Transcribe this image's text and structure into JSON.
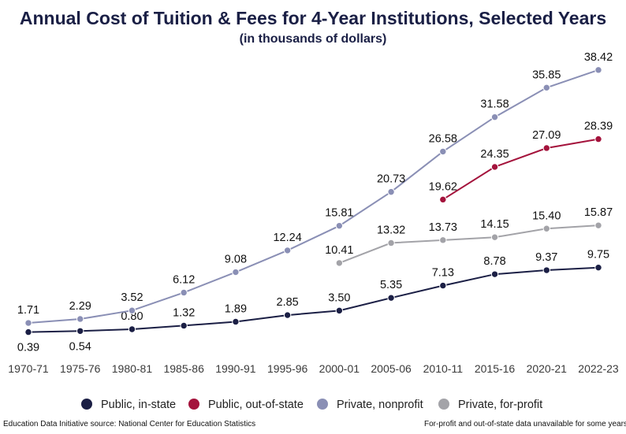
{
  "chart_data": {
    "type": "line",
    "title": "Annual Cost of Tuition & Fees for 4-Year Institutions, Selected Years",
    "subtitle": "(in thousands of dollars)",
    "xlabel": "",
    "ylabel": "",
    "ylim": [
      0,
      40
    ],
    "grid": false,
    "legend_position": "bottom",
    "categories": [
      "1970-71",
      "1975-76",
      "1980-81",
      "1985-86",
      "1990-91",
      "1995-96",
      "2000-01",
      "2005-06",
      "2010-11",
      "2015-16",
      "2020-21",
      "2022-23"
    ],
    "series": [
      {
        "name": "Public, in-state",
        "color": "#1b1f45",
        "values": [
          0.39,
          0.54,
          0.8,
          1.32,
          1.89,
          2.85,
          3.5,
          5.35,
          7.13,
          8.78,
          9.37,
          9.75
        ],
        "labels": [
          "0.39",
          "0.54",
          "0.80",
          "1.32",
          "1.89",
          "2.85",
          "3.50",
          "5.35",
          "7.13",
          "8.78",
          "9.37",
          "9.75"
        ]
      },
      {
        "name": "Public, out-of-state",
        "color": "#a4133c",
        "values": [
          null,
          null,
          null,
          null,
          null,
          null,
          null,
          null,
          19.62,
          24.35,
          27.09,
          28.39
        ],
        "labels": [
          null,
          null,
          null,
          null,
          null,
          null,
          null,
          null,
          "19.62",
          "24.35",
          "27.09",
          "28.39"
        ]
      },
      {
        "name": "Private, nonprofit",
        "color": "#8a8fb5",
        "values": [
          1.71,
          2.29,
          3.52,
          6.12,
          9.08,
          12.24,
          15.81,
          20.73,
          26.58,
          31.58,
          35.85,
          38.42
        ],
        "labels": [
          "1.71",
          "2.29",
          "3.52",
          "6.12",
          "9.08",
          "12.24",
          "15.81",
          "20.73",
          "26.58",
          "31.58",
          "35.85",
          "38.42"
        ]
      },
      {
        "name": "Private, for-profit",
        "color": "#a3a3a8",
        "values": [
          null,
          null,
          null,
          null,
          null,
          null,
          10.41,
          13.32,
          13.73,
          14.15,
          15.4,
          15.87
        ],
        "labels": [
          null,
          null,
          null,
          null,
          null,
          null,
          "10.41",
          "13.32",
          "13.73",
          "14.15",
          "15.40",
          "15.87"
        ]
      }
    ]
  },
  "footer": {
    "source": "Education Data Initiative source: National Center for Education Statistics",
    "note": "For-profit and out-of-state data unavailable for some years"
  }
}
